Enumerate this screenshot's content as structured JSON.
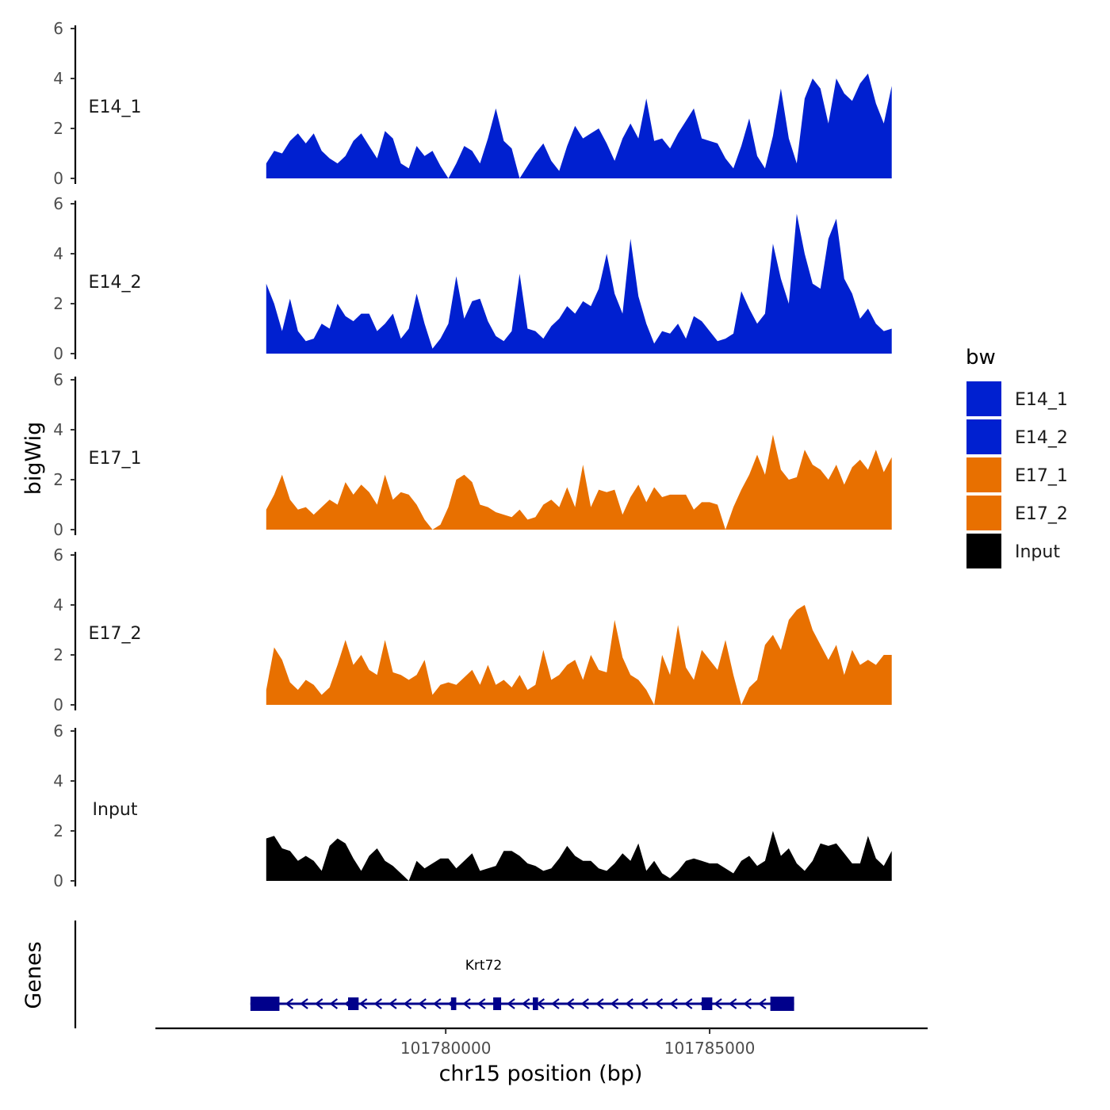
{
  "chart_data": {
    "type": "area",
    "title": "",
    "xlabel": "chr15 position (bp)",
    "ylabel": "bigWig",
    "genes_label": "Genes",
    "xlim": [
      101774500,
      101789100
    ],
    "x_ticks": [
      101780000,
      101785000
    ],
    "x_tick_labels": [
      "101780000",
      "101785000"
    ],
    "ylim": [
      0,
      6
    ],
    "y_ticks": [
      0,
      2,
      4,
      6
    ],
    "y_tick_labels": [
      "0",
      "2",
      "4",
      "6"
    ],
    "x": [
      101776600,
      101776750,
      101776900,
      101777050,
      101777200,
      101777350,
      101777500,
      101777650,
      101777800,
      101777950,
      101778100,
      101778250,
      101778400,
      101778550,
      101778700,
      101778850,
      101779000,
      101779150,
      101779300,
      101779450,
      101779600,
      101779750,
      101779900,
      101780050,
      101780200,
      101780350,
      101780500,
      101780650,
      101780800,
      101780950,
      101781100,
      101781250,
      101781400,
      101781550,
      101781700,
      101781850,
      101782000,
      101782150,
      101782300,
      101782450,
      101782600,
      101782750,
      101782900,
      101783050,
      101783200,
      101783350,
      101783500,
      101783650,
      101783800,
      101783950,
      101784100,
      101784250,
      101784400,
      101784550,
      101784700,
      101784850,
      101785000,
      101785150,
      101785300,
      101785450,
      101785600,
      101785750,
      101785900,
      101786050,
      101786200,
      101786350,
      101786500,
      101786650,
      101786800,
      101786950,
      101787100,
      101787250,
      101787400,
      101787550,
      101787700,
      101787850,
      101788000,
      101788150,
      101788300,
      101788450
    ],
    "series": [
      {
        "name": "E14_1",
        "color": "#0020D0",
        "values": [
          0.6,
          1.1,
          1.0,
          1.5,
          1.8,
          1.4,
          1.8,
          1.1,
          0.8,
          0.6,
          0.9,
          1.5,
          1.8,
          1.3,
          0.8,
          1.9,
          1.6,
          0.6,
          0.4,
          1.3,
          0.9,
          1.1,
          0.5,
          0.0,
          0.6,
          1.3,
          1.1,
          0.6,
          1.6,
          2.8,
          1.5,
          1.2,
          0.0,
          0.5,
          1.0,
          1.4,
          0.7,
          0.3,
          1.3,
          2.1,
          1.6,
          1.8,
          2.0,
          1.4,
          0.7,
          1.6,
          2.2,
          1.6,
          3.2,
          1.5,
          1.6,
          1.2,
          1.8,
          2.3,
          2.8,
          1.6,
          1.5,
          1.4,
          0.8,
          0.4,
          1.3,
          2.4,
          0.9,
          0.4,
          1.7,
          3.6,
          1.6,
          0.6,
          3.2,
          4.0,
          3.6,
          2.2,
          4.0,
          3.4,
          3.1,
          3.8,
          4.2,
          3.0,
          2.2,
          3.7
        ]
      },
      {
        "name": "E14_2",
        "color": "#0020D0",
        "values": [
          2.8,
          2.0,
          0.9,
          2.2,
          0.9,
          0.5,
          0.6,
          1.2,
          1.0,
          2.0,
          1.5,
          1.3,
          1.6,
          1.6,
          0.9,
          1.2,
          1.6,
          0.6,
          1.0,
          2.4,
          1.2,
          0.2,
          0.6,
          1.2,
          3.1,
          1.4,
          2.1,
          2.2,
          1.3,
          0.7,
          0.5,
          0.9,
          3.2,
          1.0,
          0.9,
          0.6,
          1.1,
          1.4,
          1.9,
          1.6,
          2.1,
          1.9,
          2.6,
          4.0,
          2.4,
          1.6,
          4.6,
          2.3,
          1.2,
          0.4,
          0.9,
          0.8,
          1.2,
          0.6,
          1.5,
          1.3,
          0.9,
          0.5,
          0.6,
          0.8,
          2.5,
          1.8,
          1.2,
          1.6,
          4.4,
          3.0,
          2.0,
          5.6,
          4.0,
          2.8,
          2.6,
          4.6,
          5.4,
          3.0,
          2.4,
          1.4,
          1.8,
          1.2,
          0.9,
          1.0
        ]
      },
      {
        "name": "E17_1",
        "color": "#E87000",
        "values": [
          0.8,
          1.4,
          2.2,
          1.2,
          0.8,
          0.9,
          0.6,
          0.9,
          1.2,
          1.0,
          1.9,
          1.4,
          1.8,
          1.5,
          1.0,
          2.2,
          1.2,
          1.5,
          1.4,
          1.0,
          0.4,
          0.0,
          0.2,
          0.9,
          2.0,
          2.2,
          1.9,
          1.0,
          0.9,
          0.7,
          0.6,
          0.5,
          0.8,
          0.4,
          0.5,
          1.0,
          1.2,
          0.9,
          1.7,
          0.9,
          2.6,
          0.9,
          1.6,
          1.5,
          1.6,
          0.6,
          1.3,
          1.8,
          1.1,
          1.7,
          1.3,
          1.4,
          1.4,
          1.4,
          0.8,
          1.1,
          1.1,
          1.0,
          0.0,
          0.9,
          1.6,
          2.2,
          3.0,
          2.2,
          3.8,
          2.4,
          2.0,
          2.1,
          3.2,
          2.6,
          2.4,
          2.0,
          2.6,
          1.8,
          2.5,
          2.8,
          2.4,
          3.2,
          2.3,
          2.9
        ]
      },
      {
        "name": "E17_2",
        "color": "#E87000",
        "values": [
          0.6,
          2.3,
          1.8,
          0.9,
          0.6,
          1.0,
          0.8,
          0.4,
          0.7,
          1.6,
          2.6,
          1.6,
          2.0,
          1.4,
          1.2,
          2.6,
          1.3,
          1.2,
          1.0,
          1.2,
          1.8,
          0.4,
          0.8,
          0.9,
          0.8,
          1.1,
          1.4,
          0.8,
          1.6,
          0.8,
          1.0,
          0.7,
          1.2,
          0.6,
          0.8,
          2.2,
          1.0,
          1.2,
          1.6,
          1.8,
          1.0,
          2.0,
          1.4,
          1.3,
          3.4,
          1.9,
          1.2,
          1.0,
          0.6,
          0.0,
          2.0,
          1.2,
          3.2,
          1.5,
          1.0,
          2.2,
          1.8,
          1.4,
          2.6,
          1.2,
          0.0,
          0.7,
          1.0,
          2.4,
          2.8,
          2.2,
          3.4,
          3.8,
          4.0,
          3.0,
          2.4,
          1.8,
          2.4,
          1.2,
          2.2,
          1.6,
          1.8,
          1.6,
          2.0,
          2.0
        ]
      },
      {
        "name": "Input",
        "color": "#000000",
        "values": [
          1.7,
          1.8,
          1.3,
          1.2,
          0.8,
          1.0,
          0.8,
          0.4,
          1.4,
          1.7,
          1.5,
          0.9,
          0.4,
          1.0,
          1.3,
          0.8,
          0.6,
          0.3,
          0.0,
          0.8,
          0.5,
          0.7,
          0.9,
          0.9,
          0.5,
          0.8,
          1.1,
          0.4,
          0.5,
          0.6,
          1.2,
          1.2,
          1.0,
          0.7,
          0.6,
          0.4,
          0.5,
          0.9,
          1.4,
          1.0,
          0.8,
          0.8,
          0.5,
          0.4,
          0.7,
          1.1,
          0.8,
          1.5,
          0.4,
          0.8,
          0.3,
          0.1,
          0.4,
          0.8,
          0.9,
          0.8,
          0.7,
          0.7,
          0.5,
          0.3,
          0.8,
          1.0,
          0.6,
          0.8,
          2.0,
          1.0,
          1.3,
          0.7,
          0.4,
          0.8,
          1.5,
          1.4,
          1.5,
          1.1,
          0.7,
          0.7,
          1.8,
          0.9,
          0.6,
          1.2
        ]
      }
    ],
    "legend": {
      "title": "bw",
      "position": "right",
      "items": [
        {
          "label": "E14_1",
          "color": "#0020D0"
        },
        {
          "label": "E14_2",
          "color": "#0020D0"
        },
        {
          "label": "E17_1",
          "color": "#E87000"
        },
        {
          "label": "E17_2",
          "color": "#E87000"
        },
        {
          "label": "Input",
          "color": "#000000"
        }
      ]
    },
    "gene_track": {
      "gene_name": "Krt72",
      "strand": "-",
      "color": "#00008B",
      "start": 101776300,
      "end": 101786600,
      "exons": [
        [
          101776300,
          101776850
        ],
        [
          101778150,
          101778350
        ],
        [
          101780100,
          101780200
        ],
        [
          101780900,
          101781050
        ],
        [
          101781650,
          101781750
        ],
        [
          101784850,
          101785050
        ],
        [
          101786150,
          101786600
        ]
      ]
    }
  }
}
